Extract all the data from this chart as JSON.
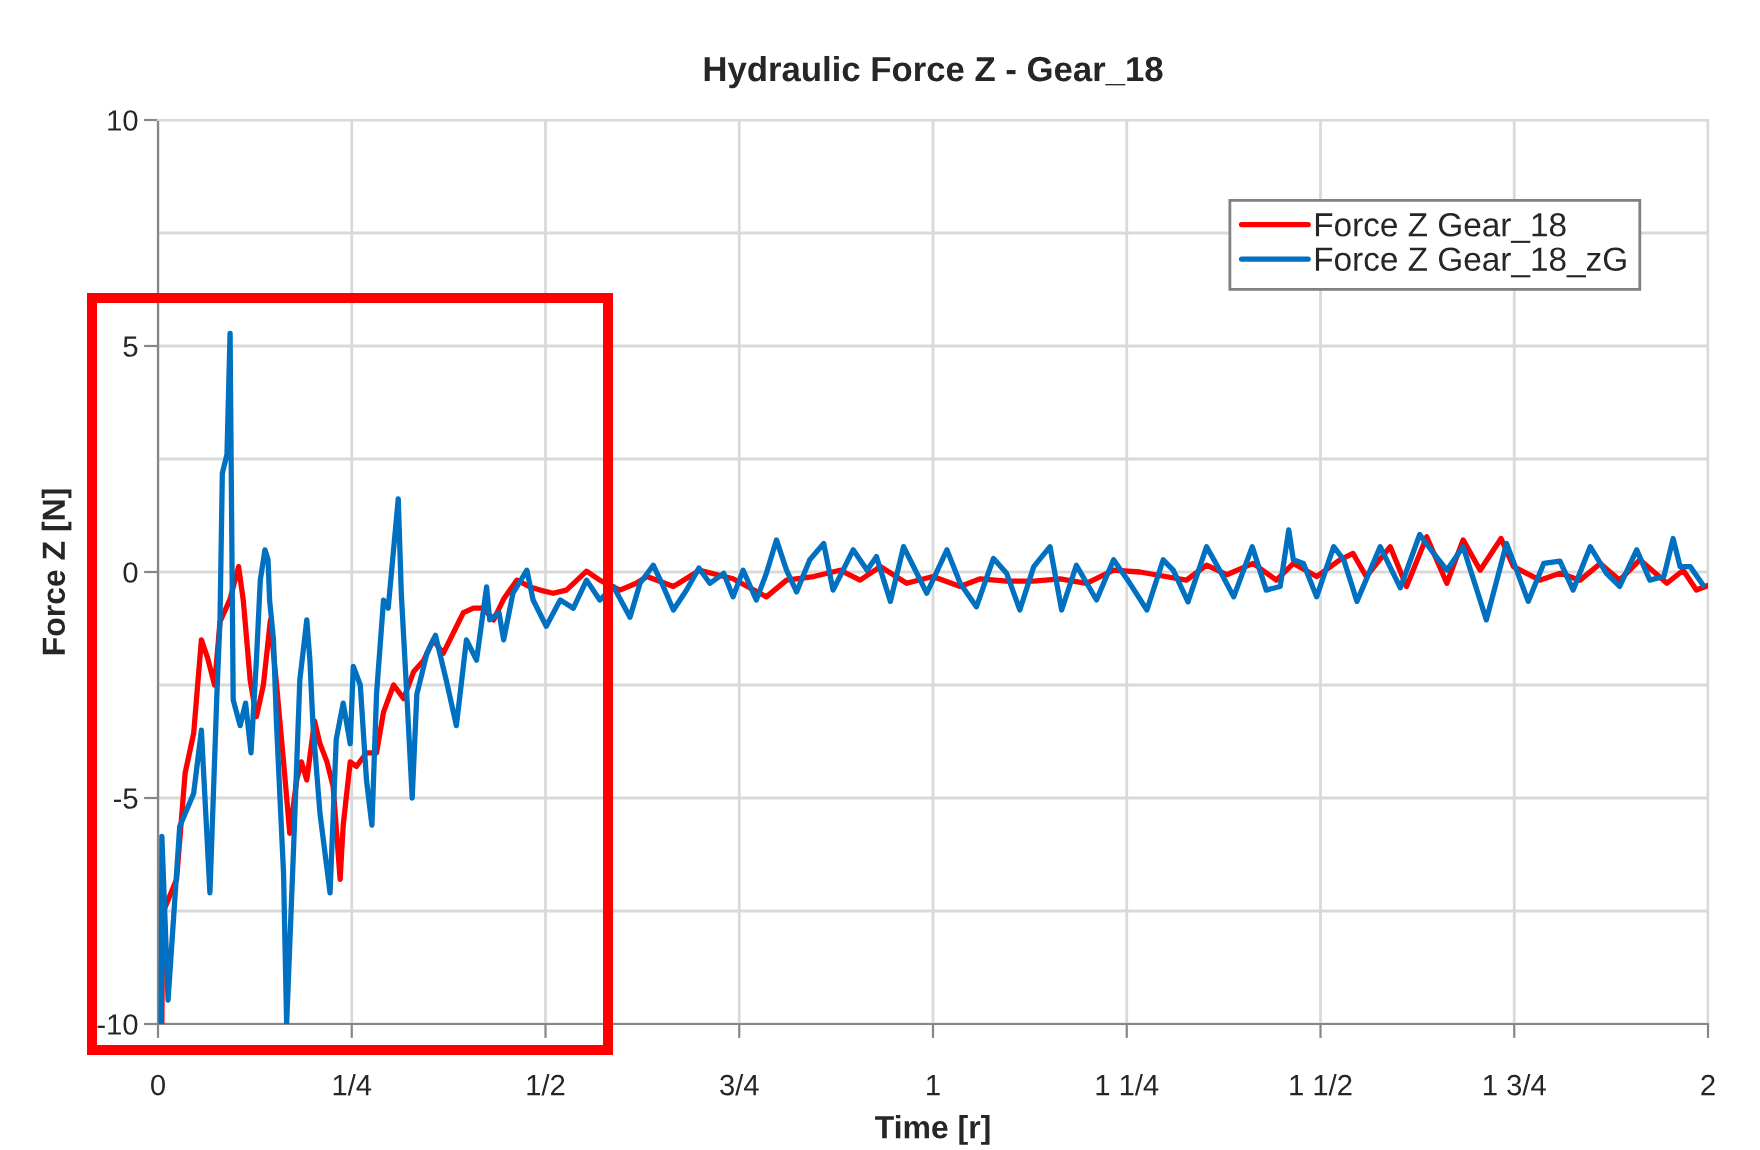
{
  "chart_data": {
    "type": "line",
    "title": "Hydraulic Force Z - Gear_18",
    "xlabel": "Time [r]",
    "ylabel": "Force Z [N]",
    "xlim": [
      0,
      2
    ],
    "ylim": [
      -10,
      10
    ],
    "xticks": [
      0,
      {
        "value": 0.25,
        "label": "1/4"
      },
      {
        "value": 0.5,
        "label": "1/2"
      },
      {
        "value": 0.75,
        "label": "3/4"
      },
      1,
      {
        "value": 1.25,
        "label": "1 1/4"
      },
      {
        "value": 1.5,
        "label": "1 1/2"
      },
      {
        "value": 1.75,
        "label": "1 3/4"
      },
      2
    ],
    "yticks": [
      -10,
      {
        "value": -7.5,
        "label": null
      },
      -5,
      {
        "value": -2.5,
        "label": null
      },
      0,
      {
        "value": 2.5,
        "label": null
      },
      5,
      {
        "value": 7.5,
        "label": null
      },
      10
    ],
    "grid": true,
    "legend": "top right",
    "series": [
      {
        "name": "Force Z Gear_18",
        "color": "#ff0000",
        "x": [
          0.005,
          0.006,
          0.024,
          0.035,
          0.046,
          0.056,
          0.064,
          0.073,
          0.08,
          0.093,
          0.104,
          0.11,
          0.119,
          0.127,
          0.136,
          0.145,
          0.153,
          0.162,
          0.17,
          0.179,
          0.185,
          0.192,
          0.202,
          0.209,
          0.218,
          0.226,
          0.235,
          0.239,
          0.248,
          0.256,
          0.269,
          0.282,
          0.291,
          0.304,
          0.317,
          0.33,
          0.343,
          0.355,
          0.368,
          0.381,
          0.394,
          0.407,
          0.42,
          0.433,
          0.446,
          0.463,
          0.48,
          0.493,
          0.51,
          0.527,
          0.553,
          0.57,
          0.596,
          0.617,
          0.631,
          0.665,
          0.699,
          0.742,
          0.785,
          0.811,
          0.846,
          0.88,
          0.906,
          0.932,
          0.966,
          1.0,
          1.035,
          1.061,
          1.095,
          1.13,
          1.164,
          1.198,
          1.233,
          1.267,
          1.3,
          1.327,
          1.353,
          1.379,
          1.413,
          1.443,
          1.465,
          1.495,
          1.525,
          1.542,
          1.559,
          1.59,
          1.611,
          1.637,
          1.663,
          1.684,
          1.706,
          1.733,
          1.749,
          1.783,
          1.809,
          1.835,
          1.861,
          1.886,
          1.912,
          1.947,
          1.968,
          1.985,
          2.0
        ],
        "values": [
          -10,
          -7.55,
          -6.8,
          -4.45,
          -3.57,
          -1.5,
          -1.9,
          -2.5,
          -1.1,
          -0.6,
          0.12,
          -0.62,
          -2.4,
          -3.2,
          -2.5,
          -1.06,
          -2.5,
          -4.2,
          -5.78,
          -4.6,
          -4.2,
          -4.6,
          -3.3,
          -3.8,
          -4.2,
          -4.75,
          -6.8,
          -5.6,
          -4.2,
          -4.3,
          -4.0,
          -4.0,
          -3.1,
          -2.5,
          -2.8,
          -2.2,
          -1.95,
          -1.5,
          -1.8,
          -1.35,
          -0.9,
          -0.8,
          -0.8,
          -1.06,
          -0.6,
          -0.18,
          -0.33,
          -0.4,
          -0.47,
          -0.4,
          0.02,
          -0.18,
          -0.4,
          -0.25,
          -0.1,
          -0.32,
          0.04,
          -0.15,
          -0.55,
          -0.18,
          -0.1,
          0.04,
          -0.18,
          0.12,
          -0.25,
          -0.1,
          -0.32,
          -0.15,
          -0.2,
          -0.2,
          -0.15,
          -0.25,
          0.04,
          0,
          -0.1,
          -0.18,
          0.15,
          -0.06,
          0.19,
          -0.18,
          0.19,
          -0.1,
          0.27,
          0.41,
          -0.1,
          0.56,
          -0.32,
          0.78,
          -0.25,
          0.71,
          0.04,
          0.74,
          0.12,
          -0.18,
          -0.03,
          -0.18,
          0.19,
          -0.18,
          0.27,
          -0.25,
          0.04,
          -0.4,
          -0.3
        ]
      },
      {
        "name": "Force Z Gear_18_zG",
        "color": "#0070c0",
        "x": [
          0.004,
          0.005,
          0.013,
          0.028,
          0.046,
          0.056,
          0.067,
          0.076,
          0.08,
          0.083,
          0.089,
          0.093,
          0.097,
          0.106,
          0.113,
          0.12,
          0.127,
          0.132,
          0.138,
          0.142,
          0.144,
          0.149,
          0.153,
          0.162,
          0.166,
          0.175,
          0.183,
          0.192,
          0.196,
          0.2,
          0.209,
          0.222,
          0.23,
          0.239,
          0.248,
          0.252,
          0.261,
          0.269,
          0.276,
          0.282,
          0.291,
          0.297,
          0.31,
          0.314,
          0.321,
          0.328,
          0.334,
          0.347,
          0.358,
          0.372,
          0.385,
          0.398,
          0.411,
          0.424,
          0.428,
          0.44,
          0.446,
          0.458,
          0.476,
          0.484,
          0.501,
          0.519,
          0.536,
          0.553,
          0.57,
          0.588,
          0.609,
          0.622,
          0.639,
          0.652,
          0.665,
          0.682,
          0.698,
          0.712,
          0.73,
          0.742,
          0.755,
          0.772,
          0.785,
          0.798,
          0.811,
          0.824,
          0.841,
          0.859,
          0.871,
          0.897,
          0.915,
          0.927,
          0.945,
          0.962,
          0.992,
          1.018,
          1.035,
          1.056,
          1.078,
          1.095,
          1.112,
          1.13,
          1.151,
          1.166,
          1.185,
          1.211,
          1.233,
          1.254,
          1.276,
          1.297,
          1.31,
          1.329,
          1.353,
          1.37,
          1.388,
          1.412,
          1.43,
          1.448,
          1.459,
          1.465,
          1.478,
          1.495,
          1.517,
          1.53,
          1.547,
          1.577,
          1.603,
          1.628,
          1.646,
          1.663,
          1.684,
          1.714,
          1.74,
          1.753,
          1.768,
          1.788,
          1.809,
          1.826,
          1.848,
          1.869,
          1.886,
          1.908,
          1.925,
          1.943,
          1.955,
          1.964,
          1.977,
          1.994
        ],
        "values": [
          -10,
          -5.85,
          -9.47,
          -5.63,
          -4.9,
          -3.5,
          -7.1,
          -2.7,
          -1.06,
          2.18,
          2.6,
          5.28,
          -2.83,
          -3.4,
          -2.9,
          -4.0,
          -1.95,
          -0.18,
          0.49,
          0.27,
          -0.62,
          -1.5,
          -3.4,
          -6.67,
          -10,
          -6.08,
          -2.39,
          -1.06,
          -1.95,
          -3.4,
          -5.34,
          -7.1,
          -3.7,
          -2.9,
          -3.8,
          -2.09,
          -2.5,
          -4.6,
          -5.6,
          -2.7,
          -0.62,
          -0.8,
          1.62,
          -0.5,
          -2.7,
          -5.0,
          -2.7,
          -1.8,
          -1.4,
          -2.4,
          -3.4,
          -1.5,
          -1.95,
          -0.33,
          -1.06,
          -0.9,
          -1.5,
          -0.47,
          0.04,
          -0.62,
          -1.2,
          -0.62,
          -0.8,
          -0.18,
          -0.62,
          -0.33,
          -1.0,
          -0.25,
          0.15,
          -0.32,
          -0.84,
          -0.4,
          0.09,
          -0.25,
          -0.03,
          -0.55,
          0.04,
          -0.62,
          -0.03,
          0.71,
          0.04,
          -0.44,
          0.27,
          0.63,
          -0.4,
          0.49,
          0.04,
          0.34,
          -0.65,
          0.56,
          -0.47,
          0.49,
          -0.25,
          -0.77,
          0.3,
          -0.03,
          -0.84,
          0.12,
          0.56,
          -0.84,
          0.15,
          -0.62,
          0.27,
          -0.25,
          -0.84,
          0.27,
          0.04,
          -0.66,
          0.56,
          0.04,
          -0.55,
          0.56,
          -0.4,
          -0.32,
          0.93,
          0.27,
          0.19,
          -0.55,
          0.56,
          0.27,
          -0.65,
          0.56,
          -0.35,
          0.83,
          0.41,
          0.04,
          0.56,
          -1.06,
          0.63,
          0.04,
          -0.65,
          0.19,
          0.24,
          -0.4,
          0.56,
          -0.03,
          -0.32,
          0.49,
          -0.18,
          -0.1,
          0.74,
          0.12,
          0.12,
          -0.3
        ]
      }
    ]
  }
}
